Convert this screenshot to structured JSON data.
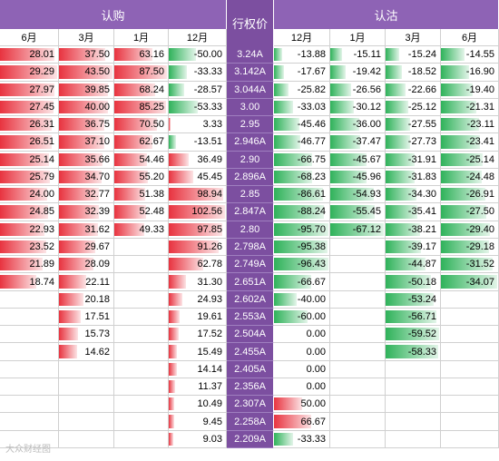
{
  "chart_data": {
    "type": "table",
    "group_labels": {
      "call": "认购",
      "strike": "行权价",
      "put": "认沽"
    },
    "call_months": [
      "6月",
      "3月",
      "1月",
      "12月"
    ],
    "put_months": [
      "12月",
      "1月",
      "3月",
      "6月"
    ],
    "strikes": [
      "3.24A",
      "3.142A",
      "3.044A",
      "3.00",
      "2.95",
      "2.946A",
      "2.90",
      "2.896A",
      "2.85",
      "2.847A",
      "2.80",
      "2.798A",
      "2.749A",
      "2.651A",
      "2.602A",
      "2.553A",
      "2.504A",
      "2.455A",
      "2.405A",
      "2.356A",
      "2.307A",
      "2.258A",
      "2.209A"
    ],
    "call": {
      "6月": [
        "28.01",
        "29.29",
        "27.97",
        "27.45",
        "26.31",
        "26.51",
        "25.14",
        "25.79",
        "24.00",
        "24.85",
        "22.93",
        "23.52",
        "21.89",
        "18.74",
        "",
        "",
        "",
        "",
        "",
        "",
        "",
        "",
        ""
      ],
      "3月": [
        "37.50",
        "43.50",
        "39.85",
        "40.00",
        "36.75",
        "37.10",
        "35.66",
        "34.70",
        "32.77",
        "32.39",
        "31.62",
        "29.67",
        "28.09",
        "22.11",
        "20.18",
        "17.51",
        "15.73",
        "14.62",
        "",
        "",
        "",
        "",
        ""
      ],
      "1月": [
        "63.16",
        "87.50",
        "68.24",
        "85.25",
        "70.50",
        "62.67",
        "54.46",
        "55.20",
        "51.38",
        "52.48",
        "49.33",
        "",
        "",
        "",
        "",
        "",
        "",
        "",
        "",
        "",
        "",
        "",
        ""
      ],
      "12月": [
        "-50.00",
        "-33.33",
        "-28.57",
        "-53.33",
        "3.33",
        "-13.51",
        "36.49",
        "45.45",
        "98.94",
        "102.56",
        "97.85",
        "91.26",
        "62.78",
        "31.30",
        "24.93",
        "19.61",
        "17.52",
        "15.49",
        "14.14",
        "11.37",
        "10.49",
        "9.45",
        "9.03"
      ]
    },
    "put": {
      "12月": [
        "-13.88",
        "-17.67",
        "-25.82",
        "-33.03",
        "-45.46",
        "-46.77",
        "-66.75",
        "-68.23",
        "-86.61",
        "-88.24",
        "-95.70",
        "-95.38",
        "-96.43",
        "-66.67",
        "-40.00",
        "-60.00",
        "0.00",
        "0.00",
        "0.00",
        "0.00",
        "50.00",
        "66.67",
        "-33.33"
      ],
      "1月": [
        "-15.11",
        "-19.42",
        "-26.56",
        "-30.12",
        "-36.00",
        "-37.47",
        "-45.67",
        "-45.96",
        "-54.93",
        "-55.45",
        "-67.12",
        "",
        "",
        "",
        "",
        "",
        "",
        "",
        "",
        "",
        "",
        "",
        ""
      ],
      "3月": [
        "-15.24",
        "-18.52",
        "-22.66",
        "-25.12",
        "-27.55",
        "-27.73",
        "-31.91",
        "-31.83",
        "-34.30",
        "-35.41",
        "-38.21",
        "-39.17",
        "-44.87",
        "-50.18",
        "-53.24",
        "-56.71",
        "-59.52",
        "-58.33",
        "",
        "",
        "",
        "",
        ""
      ],
      "6月": [
        "-14.55",
        "-16.90",
        "-19.40",
        "-21.31",
        "-23.11",
        "-23.41",
        "-25.14",
        "-24.48",
        "-26.91",
        "-27.50",
        "-29.40",
        "-29.18",
        "-31.52",
        "-34.07",
        "",
        "",
        "",
        "",
        "",
        "",
        "",
        "",
        ""
      ]
    },
    "colors": {
      "header": "#8e63b5",
      "strike_bg": "#7c4fa0",
      "positive_bar": "#e8333f",
      "negative_bar": "#2fb25a"
    }
  },
  "watermark": "大众财经图"
}
